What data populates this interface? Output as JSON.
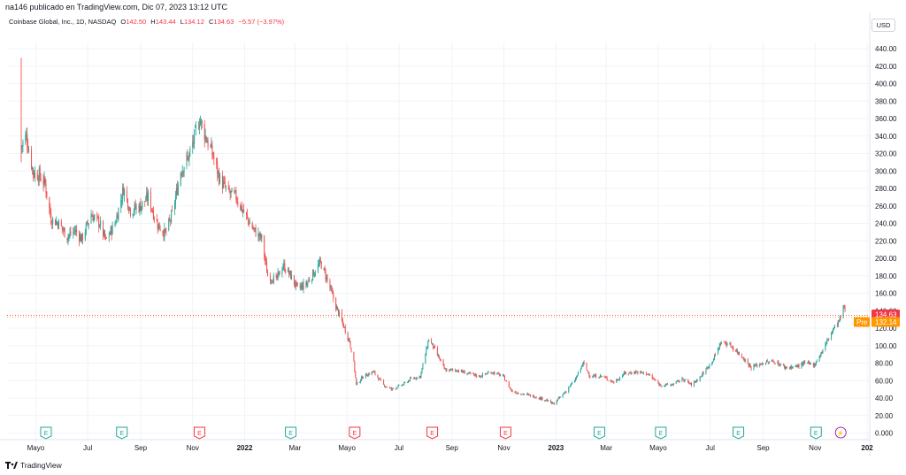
{
  "header": {
    "published_line": "na146 publicado en TradingView.com, Dic 07, 2023 13:12 UTC"
  },
  "legend": {
    "symbol": "Coinbase Global, Inc., 1D, NASDAQ",
    "o_label": "O",
    "o_value": "142.50",
    "h_label": "H",
    "h_value": "143.44",
    "l_label": "L",
    "l_value": "134.12",
    "c_label": "C",
    "c_value": "134.63",
    "change": "−5.57 (−3.97%)"
  },
  "currency_button": "USD",
  "footer": {
    "brand": "TradingView"
  },
  "colors": {
    "up": "#26a69a",
    "down": "#ef5350",
    "last_price": "#f23645",
    "pre_market": "#ff9800",
    "grid": "#f0f3fa",
    "event_earnings": "#26a69a",
    "event_earnings_neg": "#f23645",
    "event_split": "#9c27b0"
  },
  "chart_data": {
    "type": "candlestick",
    "title": "",
    "xlabel": "",
    "ylabel": "",
    "ylim": [
      0,
      440
    ],
    "y_ticks": [
      "0.000",
      "20.00",
      "40.00",
      "60.00",
      "80.00",
      "100.00",
      "120.00",
      "140.00",
      "160.00",
      "180.00",
      "200.00",
      "220.00",
      "240.00",
      "260.00",
      "280.00",
      "300.00",
      "320.00",
      "340.00",
      "360.00",
      "380.00",
      "400.00",
      "420.00",
      "440.00"
    ],
    "x_ticks": [
      {
        "label": "Mayo",
        "date": "2021-05-01"
      },
      {
        "label": "Jul",
        "date": "2021-07-01"
      },
      {
        "label": "Sep",
        "date": "2021-09-01"
      },
      {
        "label": "Nov",
        "date": "2021-11-01"
      },
      {
        "label": "2022",
        "date": "2022-01-01"
      },
      {
        "label": "Mar",
        "date": "2022-03-01"
      },
      {
        "label": "Mayo",
        "date": "2022-05-01"
      },
      {
        "label": "Jul",
        "date": "2022-07-01"
      },
      {
        "label": "Sep",
        "date": "2022-09-01"
      },
      {
        "label": "Nov",
        "date": "2022-11-01"
      },
      {
        "label": "2023",
        "date": "2023-01-01"
      },
      {
        "label": "Mar",
        "date": "2023-03-01"
      },
      {
        "label": "Mayo",
        "date": "2023-05-01"
      },
      {
        "label": "Jul",
        "date": "2023-07-01"
      },
      {
        "label": "Sep",
        "date": "2023-09-01"
      },
      {
        "label": "Nov",
        "date": "2023-11-01"
      },
      {
        "label": "202",
        "date": "2024-01-01"
      }
    ],
    "last_price": "134.63",
    "pre_market_label": "Pre",
    "pre_market_price": "132.14",
    "events": [
      {
        "date": "2021-05-13",
        "letter": "E",
        "kind": "earnings-positive"
      },
      {
        "date": "2021-08-10",
        "letter": "E",
        "kind": "earnings-positive"
      },
      {
        "date": "2021-11-09",
        "letter": "E",
        "kind": "earnings-negative"
      },
      {
        "date": "2022-02-24",
        "letter": "E",
        "kind": "earnings-positive"
      },
      {
        "date": "2022-05-10",
        "letter": "E",
        "kind": "earnings-negative"
      },
      {
        "date": "2022-08-09",
        "letter": "E",
        "kind": "earnings-negative"
      },
      {
        "date": "2022-11-03",
        "letter": "E",
        "kind": "earnings-negative"
      },
      {
        "date": "2023-02-21",
        "letter": "E",
        "kind": "earnings-positive"
      },
      {
        "date": "2023-05-04",
        "letter": "E",
        "kind": "earnings-positive"
      },
      {
        "date": "2023-08-03",
        "letter": "E",
        "kind": "earnings-positive"
      },
      {
        "date": "2023-11-02",
        "letter": "E",
        "kind": "earnings-positive"
      },
      {
        "date": "2023-12-01",
        "letter": "⚡",
        "kind": "split"
      }
    ],
    "price_path": [
      {
        "date": "2021-04-14",
        "close": 328
      },
      {
        "date": "2021-04-20",
        "close": 340
      },
      {
        "date": "2021-04-28",
        "close": 298
      },
      {
        "date": "2021-05-05",
        "close": 295
      },
      {
        "date": "2021-05-12",
        "close": 285
      },
      {
        "date": "2021-05-19",
        "close": 245
      },
      {
        "date": "2021-05-28",
        "close": 240
      },
      {
        "date": "2021-06-07",
        "close": 225
      },
      {
        "date": "2021-06-16",
        "close": 232
      },
      {
        "date": "2021-06-24",
        "close": 222
      },
      {
        "date": "2021-07-05",
        "close": 250
      },
      {
        "date": "2021-07-15",
        "close": 240
      },
      {
        "date": "2021-07-22",
        "close": 220
      },
      {
        "date": "2021-08-02",
        "close": 240
      },
      {
        "date": "2021-08-12",
        "close": 280
      },
      {
        "date": "2021-08-20",
        "close": 255
      },
      {
        "date": "2021-09-01",
        "close": 260
      },
      {
        "date": "2021-09-10",
        "close": 270
      },
      {
        "date": "2021-09-20",
        "close": 240
      },
      {
        "date": "2021-09-30",
        "close": 228
      },
      {
        "date": "2021-10-08",
        "close": 250
      },
      {
        "date": "2021-10-18",
        "close": 300
      },
      {
        "date": "2021-10-28",
        "close": 318
      },
      {
        "date": "2021-11-05",
        "close": 345
      },
      {
        "date": "2021-11-09",
        "close": 360
      },
      {
        "date": "2021-11-16",
        "close": 340
      },
      {
        "date": "2021-11-24",
        "close": 320
      },
      {
        "date": "2021-12-03",
        "close": 290
      },
      {
        "date": "2021-12-13",
        "close": 275
      },
      {
        "date": "2021-12-22",
        "close": 270
      },
      {
        "date": "2022-01-04",
        "close": 245
      },
      {
        "date": "2022-01-12",
        "close": 232
      },
      {
        "date": "2022-01-21",
        "close": 222
      },
      {
        "date": "2022-01-28",
        "close": 180
      },
      {
        "date": "2022-02-07",
        "close": 175
      },
      {
        "date": "2022-02-15",
        "close": 192
      },
      {
        "date": "2022-02-24",
        "close": 180
      },
      {
        "date": "2022-03-04",
        "close": 165
      },
      {
        "date": "2022-03-14",
        "close": 170
      },
      {
        "date": "2022-03-24",
        "close": 185
      },
      {
        "date": "2022-03-31",
        "close": 195
      },
      {
        "date": "2022-04-08",
        "close": 175
      },
      {
        "date": "2022-04-18",
        "close": 145
      },
      {
        "date": "2022-04-26",
        "close": 125
      },
      {
        "date": "2022-05-04",
        "close": 105
      },
      {
        "date": "2022-05-09",
        "close": 80
      },
      {
        "date": "2022-05-12",
        "close": 55
      },
      {
        "date": "2022-05-20",
        "close": 65
      },
      {
        "date": "2022-06-01",
        "close": 70
      },
      {
        "date": "2022-06-13",
        "close": 55
      },
      {
        "date": "2022-06-22",
        "close": 50
      },
      {
        "date": "2022-07-05",
        "close": 55
      },
      {
        "date": "2022-07-15",
        "close": 62
      },
      {
        "date": "2022-07-26",
        "close": 65
      },
      {
        "date": "2022-08-05",
        "close": 108
      },
      {
        "date": "2022-08-12",
        "close": 95
      },
      {
        "date": "2022-08-24",
        "close": 72
      },
      {
        "date": "2022-09-07",
        "close": 72
      },
      {
        "date": "2022-09-20",
        "close": 68
      },
      {
        "date": "2022-10-03",
        "close": 65
      },
      {
        "date": "2022-10-17",
        "close": 70
      },
      {
        "date": "2022-10-31",
        "close": 65
      },
      {
        "date": "2022-11-10",
        "close": 48
      },
      {
        "date": "2022-11-22",
        "close": 45
      },
      {
        "date": "2022-12-06",
        "close": 42
      },
      {
        "date": "2022-12-20",
        "close": 38
      },
      {
        "date": "2022-12-29",
        "close": 33
      },
      {
        "date": "2023-01-10",
        "close": 45
      },
      {
        "date": "2023-01-23",
        "close": 60
      },
      {
        "date": "2023-02-02",
        "close": 80
      },
      {
        "date": "2023-02-10",
        "close": 65
      },
      {
        "date": "2023-02-24",
        "close": 65
      },
      {
        "date": "2023-03-10",
        "close": 58
      },
      {
        "date": "2023-03-22",
        "close": 68
      },
      {
        "date": "2023-04-05",
        "close": 70
      },
      {
        "date": "2023-04-18",
        "close": 68
      },
      {
        "date": "2023-05-03",
        "close": 55
      },
      {
        "date": "2023-05-16",
        "close": 55
      },
      {
        "date": "2023-05-30",
        "close": 62
      },
      {
        "date": "2023-06-09",
        "close": 55
      },
      {
        "date": "2023-06-20",
        "close": 65
      },
      {
        "date": "2023-07-05",
        "close": 85
      },
      {
        "date": "2023-07-14",
        "close": 105
      },
      {
        "date": "2023-07-25",
        "close": 100
      },
      {
        "date": "2023-08-07",
        "close": 88
      },
      {
        "date": "2023-08-18",
        "close": 75
      },
      {
        "date": "2023-08-31",
        "close": 80
      },
      {
        "date": "2023-09-14",
        "close": 82
      },
      {
        "date": "2023-09-27",
        "close": 75
      },
      {
        "date": "2023-10-10",
        "close": 76
      },
      {
        "date": "2023-10-20",
        "close": 80
      },
      {
        "date": "2023-10-31",
        "close": 78
      },
      {
        "date": "2023-11-10",
        "close": 95
      },
      {
        "date": "2023-11-20",
        "close": 115
      },
      {
        "date": "2023-11-30",
        "close": 130
      },
      {
        "date": "2023-12-05",
        "close": 145
      },
      {
        "date": "2023-12-07",
        "close": 134.63
      }
    ]
  }
}
